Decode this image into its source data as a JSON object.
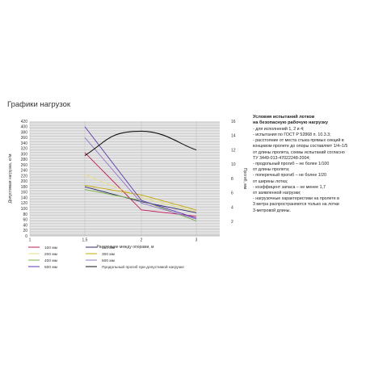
{
  "page_title": "Графики нагрузок",
  "conditions": {
    "heading": [
      "Условия испытаний лотков",
      "на безопасную рабочую нагрузку"
    ],
    "lines": [
      "- для исполнений 1, 2 и 4;",
      "- испытания по ГОСТ Р 52868 п. 10.3.3;",
      "- расстояние от места стыка прямых секций в",
      "концевом пролете до опоры составляет 1/4–1/5",
      "от длины пролета, схемы испытаний согласно",
      "ТУ 3449-013-47022248-2004;",
      "- продольный прогиб – не более 1/100",
      "от длины пролета;",
      "- поперечный прогиб – не более 1/20",
      "от ширины лотка;",
      "- коэффицент запаса – не менее 1,7",
      "от заявленной нагрузки;",
      "- нагрузочные характеристики на пролете в",
      "3 метра распространяются только на лотки",
      "3-метровой длины."
    ]
  },
  "chart_data": {
    "type": "line",
    "ylabel": "Допустимая нагрузка, кг/м",
    "y2label": "Прогиб, мм",
    "xlabel": "Расстояние между опорами, м",
    "xlim": [
      1,
      3
    ],
    "ylim": [
      0,
      420
    ],
    "y2lim": [
      0,
      16
    ],
    "xticks": [
      "1",
      "1,5",
      "2",
      "3"
    ],
    "yticks": [
      "0",
      "20",
      "40",
      "60",
      "80",
      "100",
      "120",
      "140",
      "160",
      "180",
      "200",
      "220",
      "240",
      "260",
      "280",
      "300",
      "320",
      "340",
      "360",
      "380",
      "400",
      "420"
    ],
    "y2ticks": [
      "2",
      "4",
      "6",
      "8",
      "10",
      "12",
      "14",
      "16"
    ],
    "grid": true,
    "series": [
      {
        "name": "100 мм",
        "color": "#c2185b",
        "x": [
          1.5,
          2,
          3
        ],
        "y": [
          305,
          95,
          72
        ]
      },
      {
        "name": "150 мм",
        "color": "#2a2a6e",
        "x": [
          1.5,
          2,
          3
        ],
        "y": [
          180,
          125,
          85
        ]
      },
      {
        "name": "200 мм",
        "color": "#e6e080",
        "x": [
          1.5,
          2,
          3
        ],
        "y": [
          225,
          140,
          88
        ]
      },
      {
        "name": "300 мм",
        "color": "#c6a800",
        "x": [
          1.5,
          2,
          3
        ],
        "y": [
          185,
          150,
          95
        ]
      },
      {
        "name": "400 мм",
        "color": "#7cb342",
        "x": [
          1.5,
          2,
          3
        ],
        "y": [
          170,
          130,
          55
        ]
      },
      {
        "name": "600 мм",
        "color": "#9575cd",
        "x": [
          1.5,
          2,
          3
        ],
        "y": [
          360,
          120,
          62
        ]
      },
      {
        "name": "500 мм",
        "color": "#5e35b1",
        "x": [
          1.5,
          2,
          3
        ],
        "y": [
          400,
          130,
          65
        ]
      },
      {
        "name": "Продольный прогиб при допустимой нагрузке",
        "color": "#111111",
        "axis": "right",
        "x": [
          1.5,
          2,
          3
        ],
        "y": [
          11.2,
          14.6,
          12
        ]
      }
    ]
  }
}
